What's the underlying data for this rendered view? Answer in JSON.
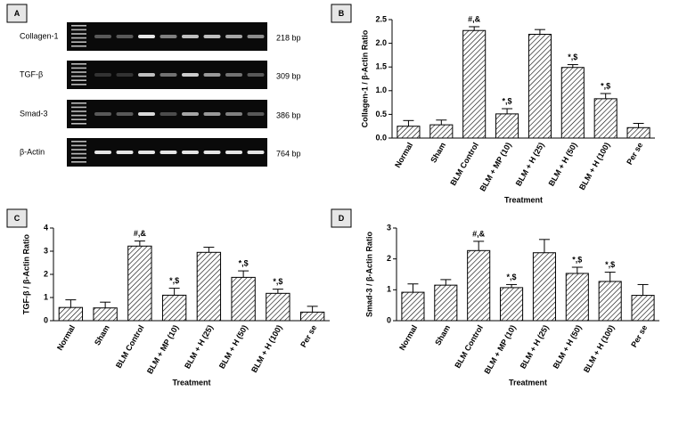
{
  "gel": {
    "panel": "A",
    "rows": [
      {
        "label": "Collagen-1",
        "size": "218 bp"
      },
      {
        "label": "TGF-β",
        "size": "309 bp"
      },
      {
        "label": "Smad-3",
        "size": "386 bp"
      },
      {
        "label": "β-Actin",
        "size": "764 bp"
      }
    ]
  },
  "chart_data": [
    {
      "type": "bar",
      "panel": "B",
      "y_label": "Collagen-1 / β-Actin Ratio",
      "x_label": "Treatment",
      "categories": [
        "Normal",
        "Sham",
        "BLM Control",
        "BLM + MP (10)",
        "BLM + H (25)",
        "BLM + H (50)",
        "BLM + H (100)",
        "Per se"
      ],
      "values": [
        0.25,
        0.28,
        2.27,
        0.51,
        2.19,
        1.49,
        0.83,
        0.22
      ],
      "errors": [
        0.12,
        0.1,
        0.08,
        0.11,
        0.1,
        0.06,
        0.11,
        0.09
      ],
      "annotations": [
        null,
        null,
        "#,&",
        "*,$",
        null,
        "*,$",
        "*,$",
        null
      ],
      "ylim": [
        0,
        2.5
      ],
      "yticks": [
        {
          "value": 0,
          "label": "0.0"
        },
        0.5,
        {
          "value": 1,
          "label": "1.0"
        },
        1.5,
        {
          "value": 2,
          "label": "2.0"
        },
        2.5
      ]
    },
    {
      "type": "bar",
      "panel": "C",
      "y_label": "TGF-β / β-Actin Ratio",
      "x_label": "Treatment",
      "categories": [
        "Normal",
        "Sham",
        "BLM Control",
        "BLM + MP (10)",
        "BLM + H (25)",
        "BLM + H (50)",
        "BLM + H (100)",
        "Per se"
      ],
      "values": [
        0.57,
        0.55,
        3.22,
        1.1,
        2.95,
        1.87,
        1.18,
        0.37
      ],
      "errors": [
        0.33,
        0.25,
        0.22,
        0.3,
        0.22,
        0.28,
        0.18,
        0.25
      ],
      "annotations": [
        null,
        null,
        "#,&",
        "*,$",
        null,
        "*,$",
        "*,$",
        null
      ],
      "ylim": [
        0,
        4
      ],
      "yticks": [
        0,
        1,
        2,
        3,
        4
      ]
    },
    {
      "type": "bar",
      "panel": "D",
      "y_label": "Smad-3 / β-Actin Ratio",
      "x_label": "Treatment",
      "categories": [
        "Normal",
        "Sham",
        "BLM Control",
        "BLM + MP (10)",
        "BLM + H (25)",
        "BLM + H (50)",
        "BLM + H (100)",
        "Per se"
      ],
      "values": [
        0.92,
        1.15,
        2.27,
        1.07,
        2.2,
        1.53,
        1.27,
        0.82
      ],
      "errors": [
        0.27,
        0.18,
        0.3,
        0.1,
        0.43,
        0.2,
        0.3,
        0.35
      ],
      "annotations": [
        null,
        null,
        "#,&",
        "*,$",
        null,
        "*,$",
        "*,$",
        null
      ],
      "ylim": [
        0,
        3
      ],
      "yticks": [
        0,
        1,
        2,
        3
      ]
    }
  ]
}
